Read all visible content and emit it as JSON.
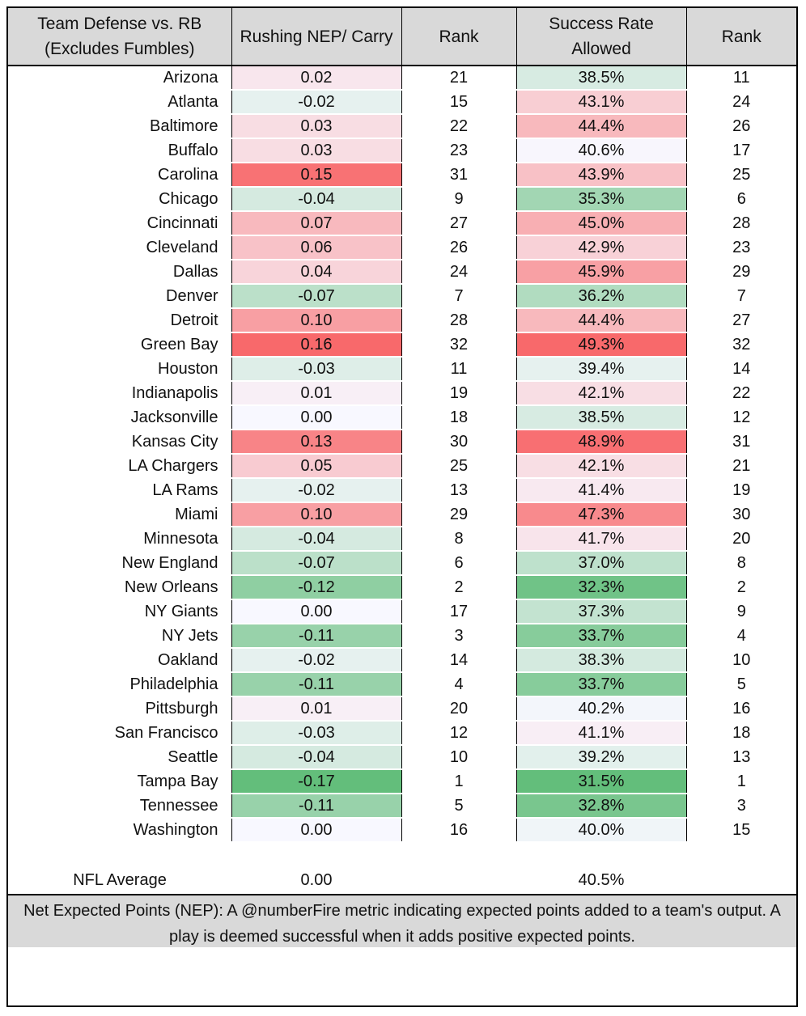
{
  "header": {
    "col1": "Team Defense vs. RB (Excludes Fumbles)",
    "col2": "Rushing NEP/ Carry",
    "col3": "Rank",
    "col4": "Success Rate Allowed",
    "col5": "Rank"
  },
  "chart_data": {
    "type": "table",
    "columns": [
      "Team Defense vs. RB (Excludes Fumbles)",
      "Rushing NEP/ Carry",
      "Rank",
      "Success Rate Allowed",
      "Rank"
    ],
    "rows": [
      {
        "team": "Arizona",
        "nep": "0.02",
        "nep_rank": "21",
        "sr": "38.5%",
        "sr_rank": "11"
      },
      {
        "team": "Atlanta",
        "nep": "-0.02",
        "nep_rank": "15",
        "sr": "43.1%",
        "sr_rank": "24"
      },
      {
        "team": "Baltimore",
        "nep": "0.03",
        "nep_rank": "22",
        "sr": "44.4%",
        "sr_rank": "26"
      },
      {
        "team": "Buffalo",
        "nep": "0.03",
        "nep_rank": "23",
        "sr": "40.6%",
        "sr_rank": "17"
      },
      {
        "team": "Carolina",
        "nep": "0.15",
        "nep_rank": "31",
        "sr": "43.9%",
        "sr_rank": "25"
      },
      {
        "team": "Chicago",
        "nep": "-0.04",
        "nep_rank": "9",
        "sr": "35.3%",
        "sr_rank": "6"
      },
      {
        "team": "Cincinnati",
        "nep": "0.07",
        "nep_rank": "27",
        "sr": "45.0%",
        "sr_rank": "28"
      },
      {
        "team": "Cleveland",
        "nep": "0.06",
        "nep_rank": "26",
        "sr": "42.9%",
        "sr_rank": "23"
      },
      {
        "team": "Dallas",
        "nep": "0.04",
        "nep_rank": "24",
        "sr": "45.9%",
        "sr_rank": "29"
      },
      {
        "team": "Denver",
        "nep": "-0.07",
        "nep_rank": "7",
        "sr": "36.2%",
        "sr_rank": "7"
      },
      {
        "team": "Detroit",
        "nep": "0.10",
        "nep_rank": "28",
        "sr": "44.4%",
        "sr_rank": "27"
      },
      {
        "team": "Green Bay",
        "nep": "0.16",
        "nep_rank": "32",
        "sr": "49.3%",
        "sr_rank": "32"
      },
      {
        "team": "Houston",
        "nep": "-0.03",
        "nep_rank": "11",
        "sr": "39.4%",
        "sr_rank": "14"
      },
      {
        "team": "Indianapolis",
        "nep": "0.01",
        "nep_rank": "19",
        "sr": "42.1%",
        "sr_rank": "22"
      },
      {
        "team": "Jacksonville",
        "nep": "0.00",
        "nep_rank": "18",
        "sr": "38.5%",
        "sr_rank": "12"
      },
      {
        "team": "Kansas City",
        "nep": "0.13",
        "nep_rank": "30",
        "sr": "48.9%",
        "sr_rank": "31"
      },
      {
        "team": "LA Chargers",
        "nep": "0.05",
        "nep_rank": "25",
        "sr": "42.1%",
        "sr_rank": "21"
      },
      {
        "team": "LA Rams",
        "nep": "-0.02",
        "nep_rank": "13",
        "sr": "41.4%",
        "sr_rank": "19"
      },
      {
        "team": "Miami",
        "nep": "0.10",
        "nep_rank": "29",
        "sr": "47.3%",
        "sr_rank": "30"
      },
      {
        "team": "Minnesota",
        "nep": "-0.04",
        "nep_rank": "8",
        "sr": "41.7%",
        "sr_rank": "20"
      },
      {
        "team": "New England",
        "nep": "-0.07",
        "nep_rank": "6",
        "sr": "37.0%",
        "sr_rank": "8"
      },
      {
        "team": "New Orleans",
        "nep": "-0.12",
        "nep_rank": "2",
        "sr": "32.3%",
        "sr_rank": "2"
      },
      {
        "team": "NY Giants",
        "nep": "0.00",
        "nep_rank": "17",
        "sr": "37.3%",
        "sr_rank": "9"
      },
      {
        "team": "NY Jets",
        "nep": "-0.11",
        "nep_rank": "3",
        "sr": "33.7%",
        "sr_rank": "4"
      },
      {
        "team": "Oakland",
        "nep": "-0.02",
        "nep_rank": "14",
        "sr": "38.3%",
        "sr_rank": "10"
      },
      {
        "team": "Philadelphia",
        "nep": "-0.11",
        "nep_rank": "4",
        "sr": "33.7%",
        "sr_rank": "5"
      },
      {
        "team": "Pittsburgh",
        "nep": "0.01",
        "nep_rank": "20",
        "sr": "40.2%",
        "sr_rank": "16"
      },
      {
        "team": "San Francisco",
        "nep": "-0.03",
        "nep_rank": "12",
        "sr": "41.1%",
        "sr_rank": "18"
      },
      {
        "team": "Seattle",
        "nep": "-0.04",
        "nep_rank": "10",
        "sr": "39.2%",
        "sr_rank": "13"
      },
      {
        "team": "Tampa Bay",
        "nep": "-0.17",
        "nep_rank": "1",
        "sr": "31.5%",
        "sr_rank": "1"
      },
      {
        "team": "Tennessee",
        "nep": "-0.11",
        "nep_rank": "5",
        "sr": "32.8%",
        "sr_rank": "3"
      },
      {
        "team": "Washington",
        "nep": "0.00",
        "nep_rank": "16",
        "sr": "40.0%",
        "sr_rank": "15"
      }
    ],
    "average": {
      "label": "NFL Average",
      "nep": "0.00",
      "sr": "40.5%"
    },
    "color_scale": {
      "low": "#63be7b",
      "mid": "#f8f8ff",
      "high": "#f8696b"
    }
  },
  "footnote": "Net Expected Points (NEP): A @numberFire metric indicating expected points added to a team's output. A play is deemed successful when it adds positive expected points."
}
